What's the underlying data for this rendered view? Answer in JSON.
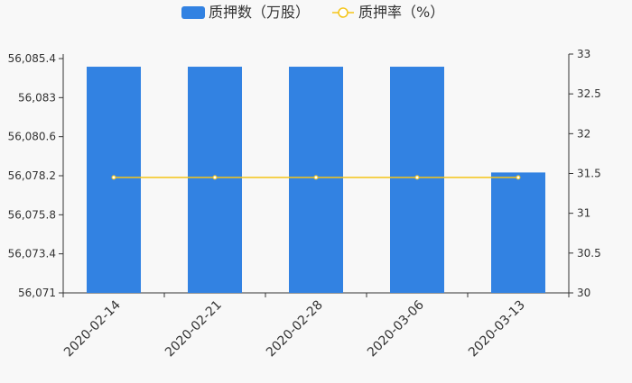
{
  "chart_data": {
    "type": "bar+line",
    "categories": [
      "2020-02-14",
      "2020-02-21",
      "2020-02-28",
      "2020-03-06",
      "2020-03-13"
    ],
    "series": [
      {
        "name": "质押数（万股）",
        "type": "bar",
        "axis": "left",
        "color": "#3282e2",
        "values": [
          56084.9,
          56084.9,
          56084.9,
          56084.9,
          56078.4
        ]
      },
      {
        "name": "质押率（%）",
        "type": "line",
        "axis": "right",
        "color": "#f5c518",
        "values": [
          31.45,
          31.45,
          31.45,
          31.45,
          31.45
        ]
      }
    ],
    "left_axis": {
      "ylim": [
        56071,
        56085.4
      ],
      "ticks": [
        "56,071",
        "56,073.4",
        "56,075.8",
        "56,078.2",
        "56,080.6",
        "56,083",
        "56,085.4"
      ],
      "tick_values": [
        56071,
        56073.4,
        56075.8,
        56078.2,
        56080.6,
        56083,
        56085.4
      ]
    },
    "right_axis": {
      "ylim": [
        30,
        33
      ],
      "ticks": [
        "30",
        "30.5",
        "31",
        "31.5",
        "32",
        "32.5",
        "33"
      ],
      "tick_values": [
        30,
        30.5,
        31,
        31.5,
        32,
        32.5,
        33
      ]
    },
    "legend": {
      "placement": "top-center",
      "items": [
        "质押数（万股）",
        "质押率（%）"
      ]
    },
    "grid": false
  }
}
